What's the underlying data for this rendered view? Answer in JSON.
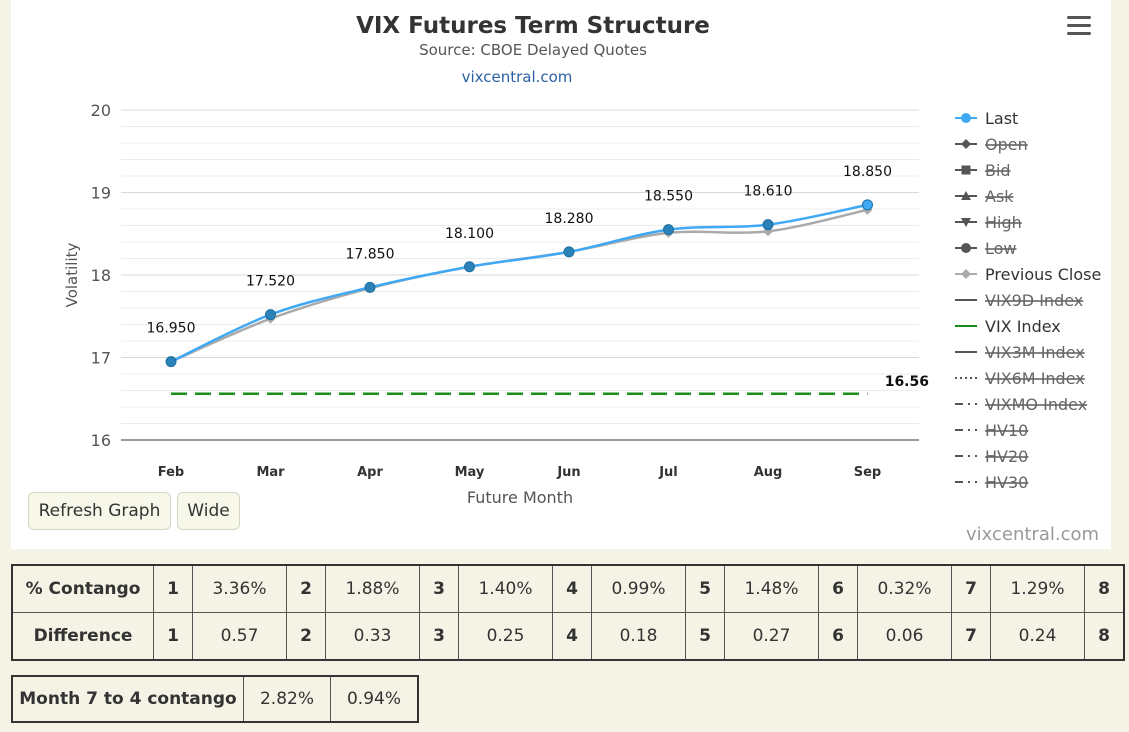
{
  "chart_data": {
    "type": "line",
    "title": "VIX Futures Term Structure",
    "subtitle": "Source: CBOE Delayed Quotes",
    "link": "vixcentral.com",
    "xlabel": "Future Month",
    "ylabel": "Volatility",
    "categories": [
      "Feb",
      "Mar",
      "Apr",
      "May",
      "Jun",
      "Jul",
      "Aug",
      "Sep"
    ],
    "ylim": [
      16,
      20
    ],
    "yticks": [
      16,
      17,
      18,
      19,
      20
    ],
    "grid": true,
    "legend_position": "right",
    "series": [
      {
        "name": "Last",
        "color": "#3fa9f5",
        "values": [
          16.95,
          17.52,
          17.85,
          18.1,
          18.28,
          18.55,
          18.61,
          18.85
        ],
        "labels": [
          "16.950",
          "17.520",
          "17.850",
          "18.100",
          "18.280",
          "18.550",
          "18.610",
          "18.850"
        ]
      },
      {
        "name": "Previous Close",
        "color": "#aaaaaa",
        "values": [
          16.95,
          17.47,
          17.84,
          18.1,
          18.28,
          18.51,
          18.53,
          18.79
        ]
      },
      {
        "name": "VIX Index",
        "color": "#1a8a1a",
        "value": 16.56,
        "label": "16.56",
        "style": "dashed"
      }
    ],
    "legend": [
      {
        "name": "Last",
        "symbol": "circle",
        "color": "#3fa9f5",
        "disabled": false
      },
      {
        "name": "Open",
        "symbol": "diamond",
        "color": "#555555",
        "disabled": true
      },
      {
        "name": "Bid",
        "symbol": "square",
        "color": "#555555",
        "disabled": true
      },
      {
        "name": "Ask",
        "symbol": "triangle",
        "color": "#555555",
        "disabled": true
      },
      {
        "name": "High",
        "symbol": "triangle-down",
        "color": "#555555",
        "disabled": true
      },
      {
        "name": "Low",
        "symbol": "circle",
        "color": "#555555",
        "disabled": true
      },
      {
        "name": "Previous Close",
        "symbol": "diamond",
        "color": "#aaaaaa",
        "disabled": false
      },
      {
        "name": "VIX9D Index",
        "symbol": "line",
        "color": "#555555",
        "disabled": true
      },
      {
        "name": "VIX Index",
        "symbol": "line",
        "color": "#1a8a1a",
        "disabled": false
      },
      {
        "name": "VIX3M Index",
        "symbol": "line",
        "color": "#555555",
        "disabled": true
      },
      {
        "name": "VIX6M Index",
        "symbol": "dotted",
        "color": "#555555",
        "disabled": true
      },
      {
        "name": "VIXMO Index",
        "symbol": "dashdot",
        "color": "#555555",
        "disabled": true
      },
      {
        "name": "HV10",
        "symbol": "dashdot",
        "color": "#555555",
        "disabled": true
      },
      {
        "name": "HV20",
        "symbol": "dashdot",
        "color": "#555555",
        "disabled": true
      },
      {
        "name": "HV30",
        "symbol": "dashdot",
        "color": "#555555",
        "disabled": true
      }
    ]
  },
  "buttons": {
    "refresh": "Refresh Graph",
    "wide": "Wide"
  },
  "credit": "vixcentral.com",
  "contango_table": {
    "rows": [
      {
        "label": "% Contango",
        "cells": [
          "1",
          "3.36%",
          "2",
          "1.88%",
          "3",
          "1.40%",
          "4",
          "0.99%",
          "5",
          "1.48%",
          "6",
          "0.32%",
          "7",
          "1.29%",
          "8"
        ]
      },
      {
        "label": "Difference",
        "cells": [
          "1",
          "0.57",
          "2",
          "0.33",
          "3",
          "0.25",
          "4",
          "0.18",
          "5",
          "0.27",
          "6",
          "0.06",
          "7",
          "0.24",
          "8"
        ]
      }
    ]
  },
  "month_table": {
    "label": "Month 7 to 4 contango",
    "values": [
      "2.82%",
      "0.94%"
    ]
  }
}
